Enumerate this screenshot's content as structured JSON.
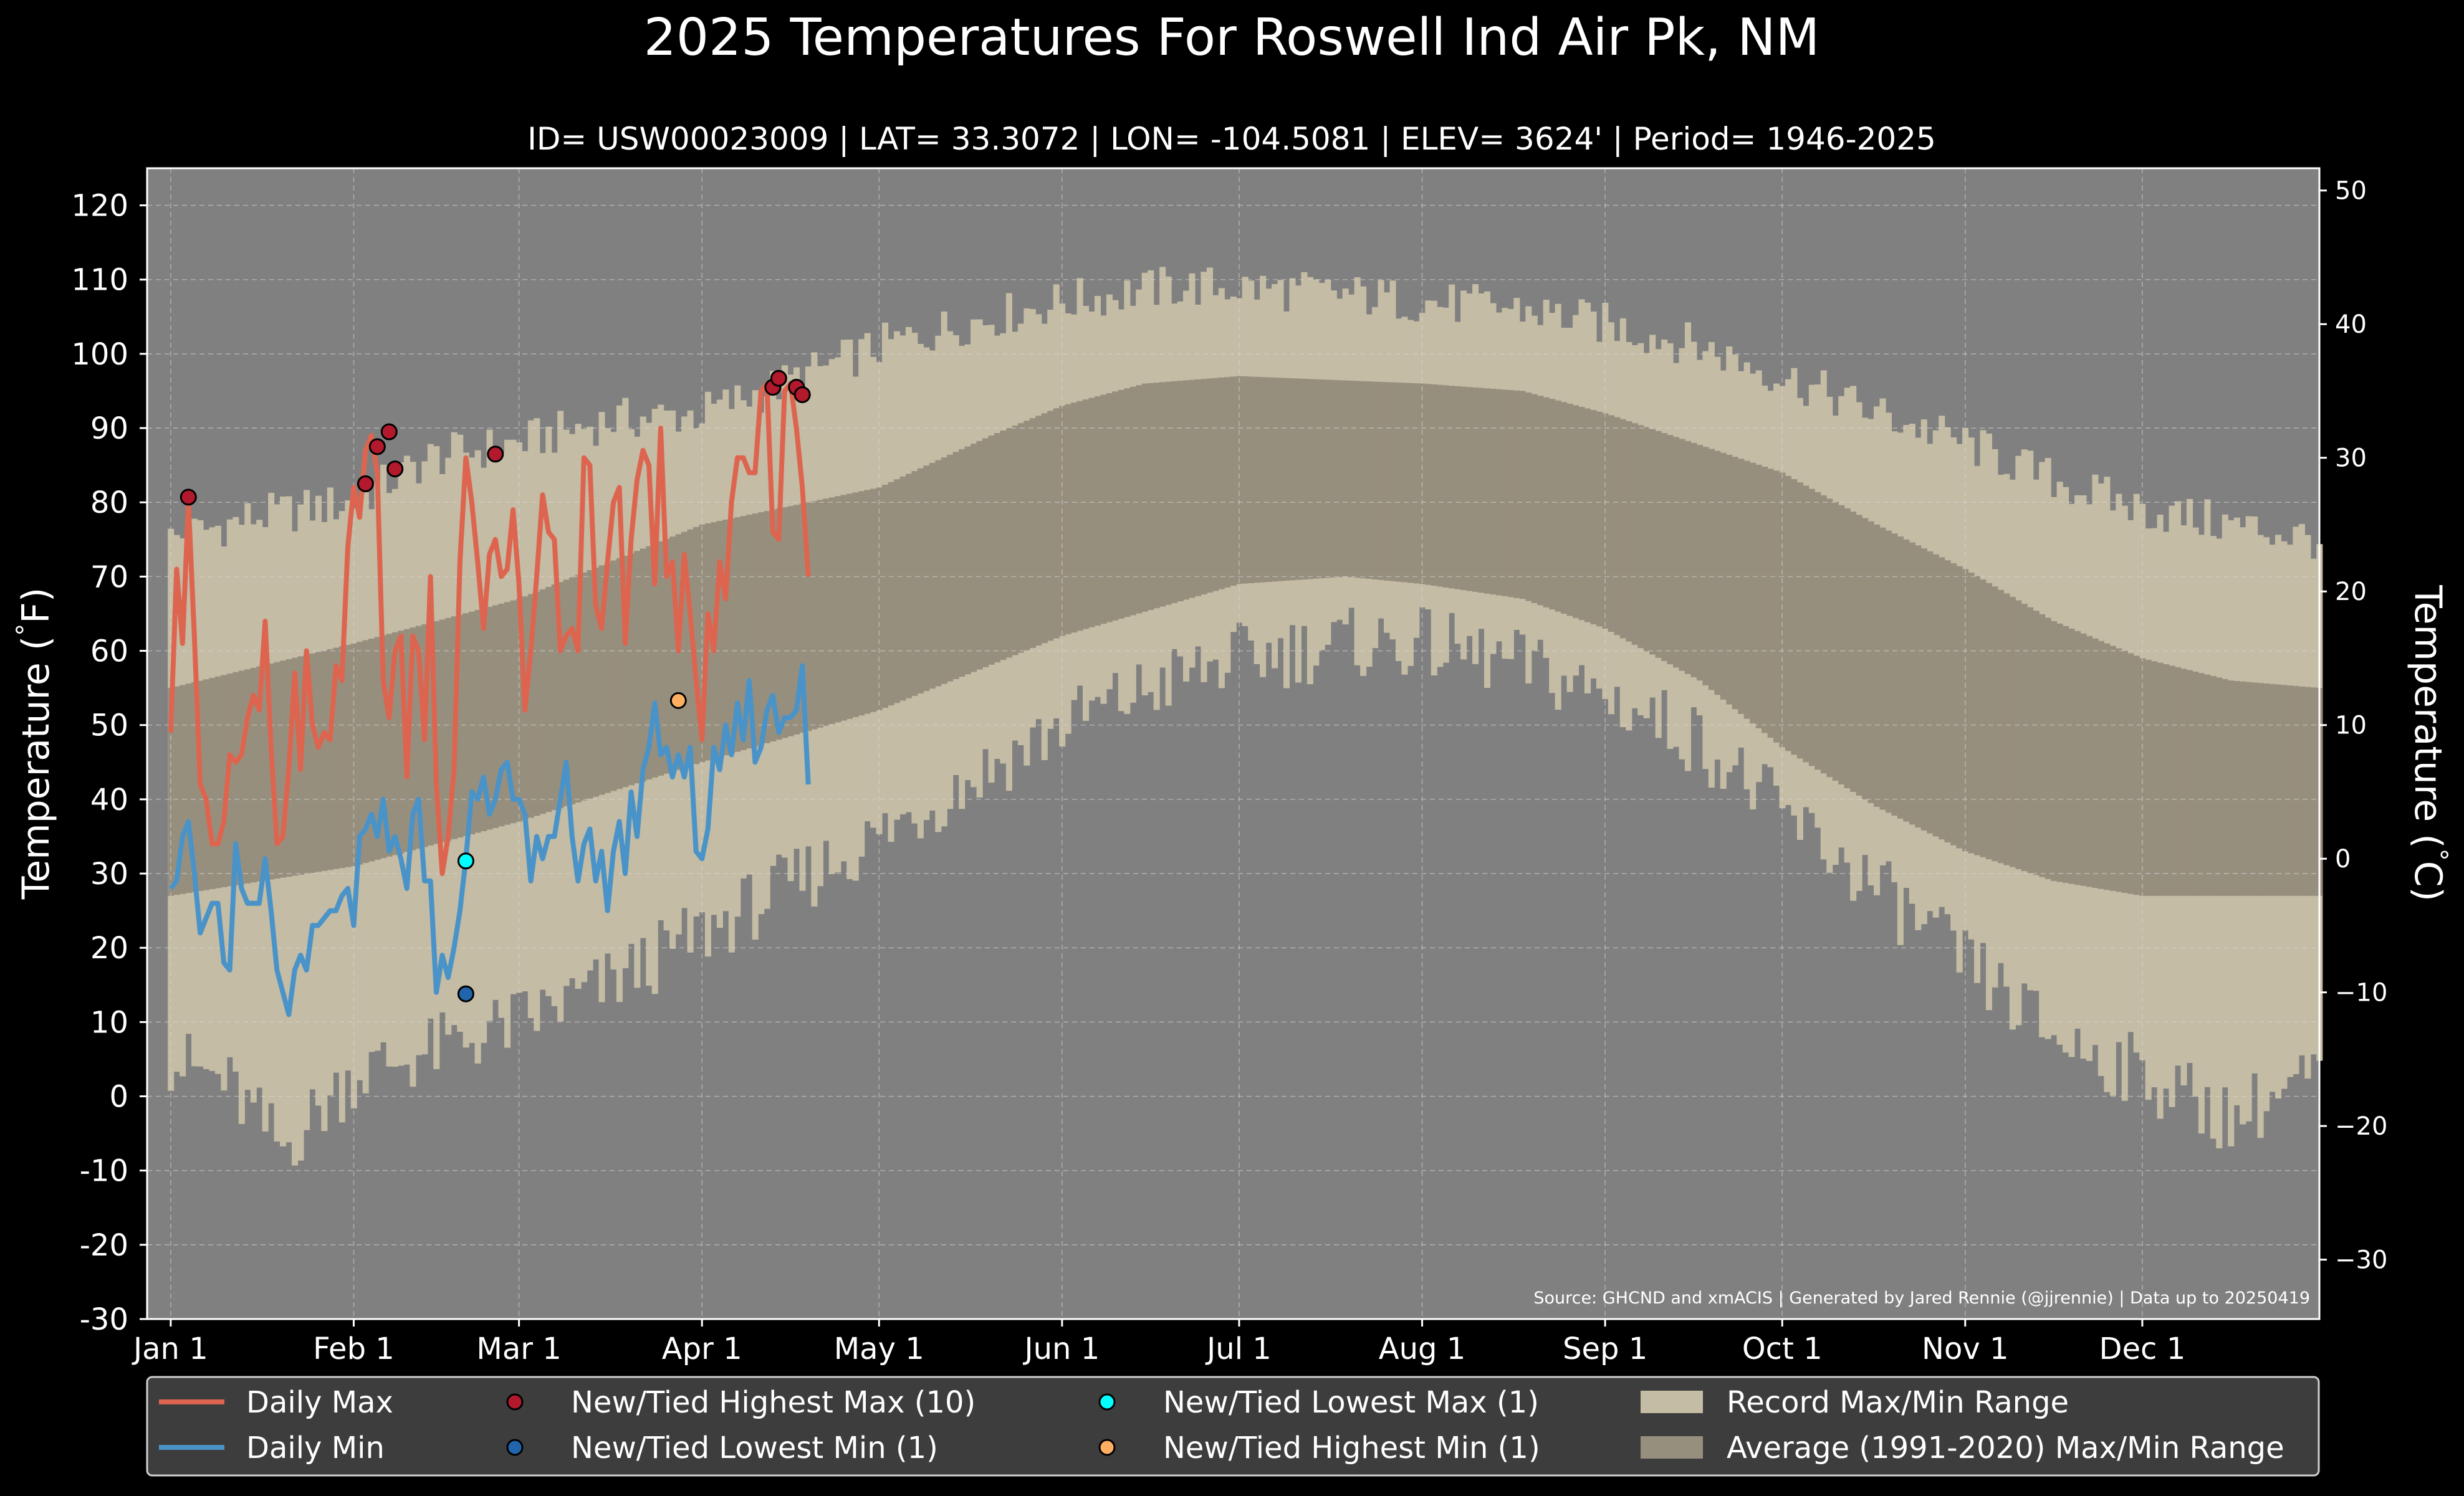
{
  "title": "2025 Temperatures For Roswell Ind Air Pk, NM",
  "subtitle": "ID= USW00023009 | LAT= 33.3072 | LON= -104.5081 | ELEV= 3624' | Period= 1946-2025",
  "source_note": "Source: GHCND and xmACIS | Generated by Jared Rennie (@jjrennie) | Data up to 20250419",
  "colors": {
    "background": "#000000",
    "plot_background": "#808080",
    "record_range": "#c4bca4",
    "average_range": "#978f7e",
    "daily_max": "#dd6550",
    "daily_min": "#4a93c8",
    "new_highest_max": "#b3192c",
    "new_lowest_min": "#2166ac",
    "new_lowest_max": "#00ffff",
    "new_highest_min": "#fdae61"
  },
  "chart_data": {
    "type": "line",
    "x_unit": "day of year 2025",
    "ylabel": "Temperature ($^\\circ$F)",
    "ylabel_right": "Temperature ($^\\circ$C)",
    "ylim": [
      -30,
      125
    ],
    "ylim_c": [
      -34.4,
      51.7
    ],
    "xlim": [
      -3,
      365
    ],
    "grid": true,
    "legend_placement": "bottom",
    "y_ticks": [
      -30,
      -20,
      -10,
      0,
      10,
      20,
      30,
      40,
      50,
      60,
      70,
      80,
      90,
      100,
      110,
      120
    ],
    "y_ticks_c": [
      -30,
      -20,
      -10,
      0,
      10,
      20,
      30,
      40,
      50
    ],
    "x_ticks": [
      {
        "label": "Jan 1",
        "day": 1
      },
      {
        "label": "Feb 1",
        "day": 32
      },
      {
        "label": "Mar 1",
        "day": 60
      },
      {
        "label": "Apr 1",
        "day": 91
      },
      {
        "label": "May 1",
        "day": 121
      },
      {
        "label": "Jun 1",
        "day": 152
      },
      {
        "label": "Jul 1",
        "day": 182
      },
      {
        "label": "Aug 1",
        "day": 213
      },
      {
        "label": "Sep 1",
        "day": 244
      },
      {
        "label": "Oct 1",
        "day": 274
      },
      {
        "label": "Nov 1",
        "day": 305
      },
      {
        "label": "Dec 1",
        "day": 335
      }
    ],
    "record_max_anchors": [
      [
        1,
        75
      ],
      [
        15,
        78
      ],
      [
        32,
        80
      ],
      [
        45,
        86
      ],
      [
        60,
        88
      ],
      [
        75,
        91
      ],
      [
        91,
        92
      ],
      [
        105,
        96
      ],
      [
        121,
        101
      ],
      [
        135,
        104
      ],
      [
        152,
        107
      ],
      [
        170,
        109
      ],
      [
        182,
        109
      ],
      [
        200,
        108
      ],
      [
        213,
        107
      ],
      [
        230,
        106
      ],
      [
        244,
        104
      ],
      [
        260,
        101
      ],
      [
        274,
        97
      ],
      [
        290,
        92
      ],
      [
        305,
        88
      ],
      [
        320,
        83
      ],
      [
        335,
        79
      ],
      [
        350,
        77
      ],
      [
        365,
        75
      ]
    ],
    "record_min_anchors": [
      [
        1,
        5
      ],
      [
        10,
        2
      ],
      [
        20,
        -7
      ],
      [
        32,
        3
      ],
      [
        45,
        6
      ],
      [
        60,
        10
      ],
      [
        75,
        15
      ],
      [
        91,
        22
      ],
      [
        105,
        28
      ],
      [
        121,
        35
      ],
      [
        135,
        42
      ],
      [
        152,
        50
      ],
      [
        170,
        56
      ],
      [
        182,
        59
      ],
      [
        200,
        61
      ],
      [
        213,
        61
      ],
      [
        230,
        58
      ],
      [
        244,
        54
      ],
      [
        260,
        48
      ],
      [
        274,
        38
      ],
      [
        290,
        28
      ],
      [
        305,
        18
      ],
      [
        320,
        8
      ],
      [
        335,
        3
      ],
      [
        350,
        -3
      ],
      [
        365,
        3
      ]
    ],
    "average_max_anchors": [
      [
        1,
        55
      ],
      [
        32,
        61
      ],
      [
        60,
        67
      ],
      [
        91,
        77
      ],
      [
        121,
        82
      ],
      [
        140,
        89
      ],
      [
        152,
        93
      ],
      [
        166,
        96
      ],
      [
        182,
        97
      ],
      [
        213,
        96
      ],
      [
        230,
        95
      ],
      [
        244,
        92
      ],
      [
        274,
        84
      ],
      [
        290,
        77
      ],
      [
        305,
        71
      ],
      [
        320,
        64
      ],
      [
        335,
        59
      ],
      [
        350,
        56
      ],
      [
        365,
        55
      ]
    ],
    "average_min_anchors": [
      [
        1,
        27
      ],
      [
        32,
        31
      ],
      [
        60,
        37
      ],
      [
        91,
        45
      ],
      [
        121,
        52
      ],
      [
        152,
        62
      ],
      [
        182,
        69
      ],
      [
        200,
        70
      ],
      [
        213,
        69
      ],
      [
        230,
        67
      ],
      [
        244,
        63
      ],
      [
        260,
        56
      ],
      [
        274,
        47
      ],
      [
        290,
        39
      ],
      [
        305,
        33
      ],
      [
        320,
        29
      ],
      [
        335,
        27
      ],
      [
        365,
        27
      ]
    ],
    "series": [
      {
        "name": "Daily Max",
        "x": [
          1,
          2,
          3,
          4,
          5,
          6,
          7,
          8,
          9,
          10,
          11,
          12,
          13,
          14,
          15,
          16,
          17,
          18,
          19,
          20,
          21,
          22,
          23,
          24,
          25,
          26,
          27,
          28,
          29,
          30,
          31,
          32,
          33,
          34,
          35,
          36,
          37,
          38,
          39,
          40,
          41,
          42,
          43,
          44,
          45,
          46,
          47,
          48,
          49,
          50,
          51,
          52,
          53,
          54,
          55,
          56,
          57,
          58,
          59,
          60,
          61,
          62,
          63,
          64,
          65,
          66,
          67,
          68,
          69,
          70,
          71,
          72,
          73,
          74,
          75,
          76,
          77,
          78,
          79,
          80,
          81,
          82,
          83,
          84,
          85,
          86,
          87,
          88,
          89,
          90,
          91,
          92,
          93,
          94,
          95,
          96,
          97,
          98,
          99,
          100,
          101,
          102,
          103,
          104,
          105,
          106,
          107,
          108,
          109
        ],
        "values": [
          49,
          71,
          61,
          80,
          62,
          42,
          40,
          34,
          34,
          37,
          46,
          45,
          46,
          51,
          54,
          52,
          64,
          47,
          34,
          35,
          44,
          57,
          44,
          60,
          50,
          47,
          49,
          48,
          58,
          56,
          74,
          82,
          78,
          87,
          89,
          84,
          56,
          51,
          60,
          62,
          43,
          62,
          60,
          48,
          70,
          42,
          30,
          35,
          44,
          72,
          86,
          80,
          72,
          63,
          73,
          75,
          70,
          71,
          79,
          69,
          52,
          60,
          70,
          81,
          76,
          75,
          60,
          62,
          63,
          60,
          86,
          85,
          66,
          63,
          72,
          80,
          82,
          61,
          75,
          83,
          87,
          85,
          69,
          90,
          70,
          72,
          60,
          73,
          65,
          56,
          48,
          65,
          60,
          72,
          67,
          80,
          86,
          86,
          84,
          84,
          95,
          96,
          76,
          75,
          95,
          96,
          90,
          82,
          70
        ]
      },
      {
        "name": "Daily Min",
        "x": [
          1,
          2,
          3,
          4,
          5,
          6,
          7,
          8,
          9,
          10,
          11,
          12,
          13,
          14,
          15,
          16,
          17,
          18,
          19,
          20,
          21,
          22,
          23,
          24,
          25,
          26,
          27,
          28,
          29,
          30,
          31,
          32,
          33,
          34,
          35,
          36,
          37,
          38,
          39,
          40,
          41,
          42,
          43,
          44,
          45,
          46,
          47,
          48,
          49,
          50,
          51,
          52,
          53,
          54,
          55,
          56,
          57,
          58,
          59,
          60,
          61,
          62,
          63,
          64,
          65,
          66,
          67,
          68,
          69,
          70,
          71,
          72,
          73,
          74,
          75,
          76,
          77,
          78,
          79,
          80,
          81,
          82,
          83,
          84,
          85,
          86,
          87,
          88,
          89,
          90,
          91,
          92,
          93,
          94,
          95,
          96,
          97,
          98,
          99,
          100,
          101,
          102,
          103,
          104,
          105,
          106,
          107,
          108,
          109
        ],
        "values": [
          28,
          29,
          35,
          37,
          30,
          22,
          24,
          26,
          26,
          18,
          17,
          34,
          28,
          26,
          26,
          26,
          32,
          25,
          17,
          14,
          11,
          17,
          19,
          17,
          23,
          23,
          24,
          25,
          25,
          27,
          28,
          23,
          35,
          36,
          38,
          35,
          40,
          33,
          35,
          32,
          28,
          38,
          40,
          29,
          29,
          14,
          19,
          16,
          20,
          25,
          32,
          41,
          40,
          43,
          38,
          40,
          44,
          45,
          40,
          40,
          38,
          29,
          35,
          32,
          35,
          35,
          40,
          45,
          35,
          29,
          34,
          36,
          29,
          33,
          25,
          33,
          37,
          30,
          41,
          35,
          44,
          47,
          53,
          46,
          47,
          43,
          46,
          43,
          47,
          33,
          32,
          36,
          47,
          44,
          50,
          46,
          53,
          48,
          56,
          45,
          47,
          52,
          54,
          49,
          51,
          51,
          52,
          58,
          42
        ]
      }
    ],
    "markers": [
      {
        "name": "New/Tied Highest Max (10)",
        "points": [
          [
            4,
            80.7
          ],
          [
            34,
            82.5
          ],
          [
            36,
            87.5
          ],
          [
            38,
            89.5
          ],
          [
            39,
            84.5
          ],
          [
            56,
            86.5
          ],
          [
            103,
            95.5
          ],
          [
            104,
            96.7
          ],
          [
            107,
            95.5
          ],
          [
            108,
            94.5
          ]
        ]
      },
      {
        "name": "New/Tied Lowest Min (1)",
        "points": [
          [
            51,
            13.8
          ]
        ]
      },
      {
        "name": "New/Tied Lowest Max (1)",
        "points": [
          [
            51,
            31.7
          ]
        ]
      },
      {
        "name": "New/Tied Highest Min (1)",
        "points": [
          [
            87,
            53.3
          ]
        ]
      }
    ],
    "bands": [
      {
        "name": "Record Max/Min Range"
      },
      {
        "name": "Average (1991-2020) Max/Min Range"
      }
    ]
  }
}
